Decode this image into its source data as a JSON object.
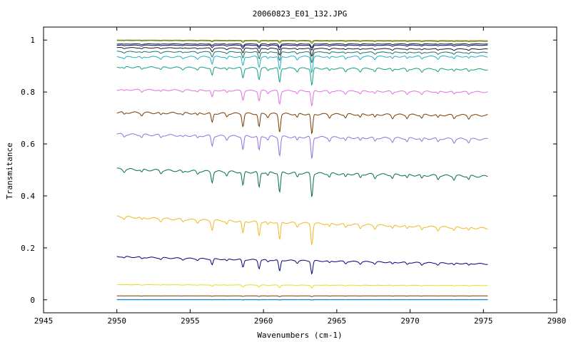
{
  "chart_data": {
    "type": "line",
    "title": "20060823_E01_132.JPG",
    "xlabel": "Wavenumbers (cm-1)",
    "ylabel": "Transmitance",
    "xlim": [
      2945,
      2980
    ],
    "ylim": [
      -0.05,
      1.05
    ],
    "xticks": [
      2945,
      2950,
      2955,
      2960,
      2965,
      2970,
      2975,
      2980
    ],
    "xtick_labels": [
      "2945",
      "2950",
      "2955",
      "2960",
      "2965",
      "2970",
      "2975",
      "2980"
    ],
    "yticks": [
      0,
      0.2,
      0.4,
      0.6,
      0.8,
      1
    ],
    "ytick_labels": [
      "0",
      "0.2",
      "0.4",
      "0.6",
      "0.8",
      "1"
    ],
    "grid": false,
    "x_range_data": [
      2950,
      2975.3
    ],
    "absorption_lines": [
      {
        "x": 2950.5,
        "rel_depth": 0.1
      },
      {
        "x": 2951.7,
        "rel_depth": 0.12
      },
      {
        "x": 2953.0,
        "rel_depth": 0.12
      },
      {
        "x": 2954.5,
        "rel_depth": 0.1
      },
      {
        "x": 2955.5,
        "rel_depth": 0.12
      },
      {
        "x": 2956.5,
        "rel_depth": 0.45
      },
      {
        "x": 2957.5,
        "rel_depth": 0.15
      },
      {
        "x": 2958.6,
        "rel_depth": 0.6
      },
      {
        "x": 2959.7,
        "rel_depth": 0.65
      },
      {
        "x": 2960.3,
        "rel_depth": 0.15
      },
      {
        "x": 2961.1,
        "rel_depth": 0.85
      },
      {
        "x": 2962.3,
        "rel_depth": 0.18
      },
      {
        "x": 2963.3,
        "rel_depth": 1.0
      },
      {
        "x": 2964.5,
        "rel_depth": 0.15
      },
      {
        "x": 2965.6,
        "rel_depth": 0.16
      },
      {
        "x": 2966.6,
        "rel_depth": 0.16
      },
      {
        "x": 2967.6,
        "rel_depth": 0.16
      },
      {
        "x": 2968.8,
        "rel_depth": 0.16
      },
      {
        "x": 2969.8,
        "rel_depth": 0.15
      },
      {
        "x": 2970.8,
        "rel_depth": 0.16
      },
      {
        "x": 2971.9,
        "rel_depth": 0.15
      },
      {
        "x": 2973.0,
        "rel_depth": 0.16
      },
      {
        "x": 2974.0,
        "rel_depth": 0.15
      }
    ],
    "series": [
      {
        "color": "#e07020",
        "start": 1.0,
        "end": 0.998,
        "line_depth": 0.006
      },
      {
        "color": "#20a020",
        "start": 0.998,
        "end": 0.995,
        "line_depth": 0.01
      },
      {
        "color": "#1a1a1a",
        "start": 0.985,
        "end": 0.985,
        "line_depth": 0.015
      },
      {
        "color": "#000080",
        "start": 0.98,
        "end": 0.98,
        "line_depth": 0.02
      },
      {
        "color": "#1a1a1a",
        "start": 0.97,
        "end": 0.965,
        "line_depth": 0.03
      },
      {
        "color": "#1a7070",
        "start": 0.955,
        "end": 0.952,
        "line_depth": 0.04
      },
      {
        "color": "#20b0c0",
        "start": 0.935,
        "end": 0.937,
        "line_depth": 0.06
      },
      {
        "color": "#10a080",
        "start": 0.895,
        "end": 0.887,
        "line_depth": 0.065
      },
      {
        "color": "#e070e0",
        "start": 0.808,
        "end": 0.8,
        "line_depth": 0.06
      },
      {
        "color": "#7a3a00",
        "start": 0.72,
        "end": 0.71,
        "line_depth": 0.08
      },
      {
        "color": "#9070e0",
        "start": 0.635,
        "end": 0.618,
        "line_depth": 0.085
      },
      {
        "color": "#007040",
        "start": 0.5,
        "end": 0.475,
        "line_depth": 0.09
      },
      {
        "color": "#f0b820",
        "start": 0.315,
        "end": 0.275,
        "line_depth": 0.08
      },
      {
        "color": "#000080",
        "start": 0.163,
        "end": 0.138,
        "line_depth": 0.05
      },
      {
        "color": "#e0e020",
        "start": 0.058,
        "end": 0.055,
        "line_depth": 0.012
      },
      {
        "color": "#7a3a00",
        "start": 0.015,
        "end": 0.015,
        "line_depth": 0.003
      },
      {
        "color": "#2040ff",
        "start": 0.001,
        "end": 0.001,
        "line_depth": 0.001
      },
      {
        "color": "#20a0c0",
        "start": 0.0,
        "end": 0.0,
        "line_depth": 0.001
      }
    ]
  }
}
